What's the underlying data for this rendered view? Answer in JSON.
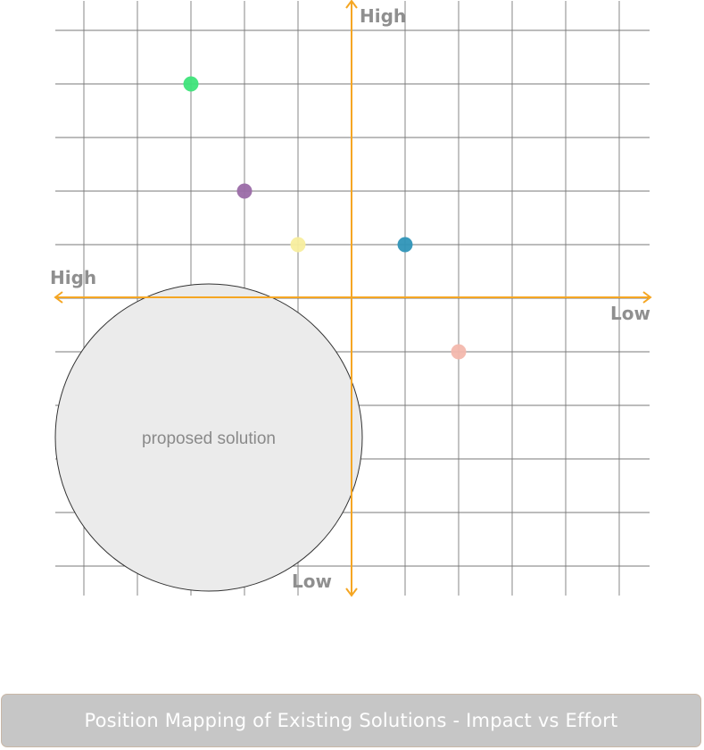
{
  "axes": {
    "top_label": "High",
    "bottom_label": "Low",
    "left_label": "High",
    "right_label": "Low",
    "axis_color": "#f5a623"
  },
  "proposed_solution": {
    "label": "proposed solution",
    "fill": "#ebebeb"
  },
  "existing_solutions": [
    {
      "color": "#3ee47a"
    },
    {
      "color": "#9b6ba8"
    },
    {
      "color": "#f8ee9e"
    },
    {
      "color": "#2f95b8"
    },
    {
      "color": "#f3b8ad"
    }
  ],
  "caption": {
    "text": "Position Mapping of Existing Solutions - Impact vs Effort"
  }
}
